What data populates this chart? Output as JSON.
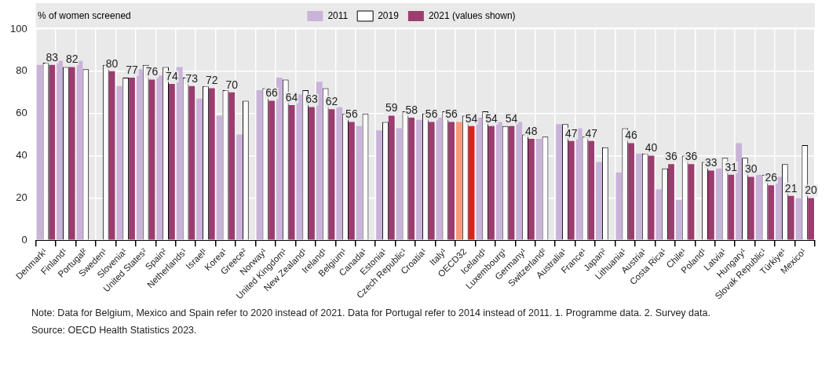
{
  "chart_data": {
    "type": "bar",
    "ylabel": "% of women screened",
    "categories": [
      "Denmark¹",
      "Finland¹",
      "Portugal²",
      "Sweden¹",
      "Slovenia¹",
      "United States²",
      "Spain²",
      "Netherlands¹",
      "Israel¹",
      "Korea¹",
      "Greece²",
      "Norway¹",
      "United Kingdom¹",
      "New Zealand¹",
      "Ireland¹",
      "Belgium¹",
      "Canada¹",
      "Estonia¹",
      "Czech Republic¹",
      "Croatia¹",
      "Italy¹",
      "OECD32",
      "Iceland¹",
      "Luxembourg¹",
      "Germany¹",
      "Switzerland²",
      "Australia¹",
      "France¹",
      "Japan²",
      "Lithuania¹",
      "Austria¹",
      "Costa Rica¹",
      "Chile¹",
      "Poland¹",
      "Latvia¹",
      "Hungary¹",
      "Slovak Republic¹",
      "Türkiye¹",
      "Mexico¹"
    ],
    "series": [
      {
        "name": "2011",
        "color": "#c9b3d9",
        "colors": [
          "#c9b3d9",
          "#c9b3d9",
          "#c9b3d9",
          "#c9b3d9",
          "#c9b3d9",
          "#c9b3d9",
          "#c9b3d9",
          "#c9b3d9",
          "#c9b3d9",
          "#c9b3d9",
          "#c9b3d9",
          "#c9b3d9",
          "#c9b3d9",
          "#c9b3d9",
          "#c9b3d9",
          "#c9b3d9",
          "#c9b3d9",
          "#c9b3d9",
          "#c9b3d9",
          "#c9b3d9",
          "#c9b3d9",
          "#f79a7a",
          "#c9b3d9",
          "#c9b3d9",
          "#c9b3d9",
          "#c9b3d9",
          "#c9b3d9",
          "#c9b3d9",
          "#c9b3d9",
          "#c9b3d9",
          "#c9b3d9",
          "#c9b3d9",
          "#c9b3d9",
          "#c9b3d9",
          "#c9b3d9",
          "#c9b3d9",
          "#c9b3d9",
          "#c9b3d9",
          "#c9b3d9"
        ],
        "values": [
          83,
          85,
          85,
          null,
          73,
          81,
          78,
          82,
          67,
          59,
          50,
          71,
          77,
          69,
          75,
          63,
          54,
          52,
          53,
          57,
          58,
          56,
          58,
          56,
          56,
          48,
          55,
          53,
          37,
          32,
          41,
          24,
          19,
          null,
          34,
          46,
          31,
          30,
          20
        ]
      },
      {
        "name": "2019",
        "color": "#ffffff",
        "values": [
          84,
          82,
          81,
          83,
          77,
          83,
          82,
          77,
          73,
          71,
          66,
          72,
          76,
          71,
          72,
          60,
          60,
          56,
          61,
          60,
          61,
          59,
          61,
          54,
          50,
          49,
          55,
          49,
          44,
          53,
          41,
          34,
          40,
          37,
          39,
          39,
          31,
          36,
          45
        ]
      },
      {
        "name": "2021 (values shown)",
        "color": "#9b3d6e",
        "colors": [
          "#9b3d6e",
          "#9b3d6e",
          "#9b3d6e",
          "#9b3d6e",
          "#9b3d6e",
          "#9b3d6e",
          "#9b3d6e",
          "#9b3d6e",
          "#9b3d6e",
          "#9b3d6e",
          "#9b3d6e",
          "#9b3d6e",
          "#9b3d6e",
          "#9b3d6e",
          "#9b3d6e",
          "#9b3d6e",
          "#9b3d6e",
          "#9b3d6e",
          "#9b3d6e",
          "#9b3d6e",
          "#9b3d6e",
          "#e0201f",
          "#9b3d6e",
          "#9b3d6e",
          "#9b3d6e",
          "#9b3d6e",
          "#9b3d6e",
          "#9b3d6e",
          "#9b3d6e",
          "#9b3d6e",
          "#9b3d6e",
          "#9b3d6e",
          "#9b3d6e",
          "#9b3d6e",
          "#9b3d6e",
          "#9b3d6e",
          "#9b3d6e",
          "#9b3d6e",
          "#9b3d6e"
        ],
        "values": [
          83,
          82,
          null,
          80,
          77,
          76,
          74,
          73,
          72,
          70,
          null,
          66,
          64,
          63,
          62,
          56,
          null,
          59,
          58,
          56,
          56,
          54,
          54,
          54,
          48,
          null,
          47,
          47,
          null,
          46,
          40,
          36,
          36,
          33,
          31,
          30,
          26,
          21,
          20
        ],
        "value_labels": [
          "83",
          "82",
          null,
          "80",
          "77",
          "76",
          "74",
          "73",
          "72",
          "70",
          null,
          "66",
          "64",
          "63",
          "62",
          "56",
          null,
          "59",
          "58",
          "56",
          "56",
          "54",
          "54",
          "54",
          "48",
          null,
          "47",
          "47",
          null,
          "46",
          "40",
          "36",
          "36",
          "33",
          "31",
          "30",
          "26",
          "21",
          "20"
        ]
      }
    ],
    "ylim": [
      0,
      100
    ],
    "yticks": [
      0,
      20,
      40,
      60,
      80,
      100
    ],
    "grid": true,
    "legend": "top",
    "annotations": [
      "Note: Data for Belgium, Mexico and Spain refer to 2020 instead of 2021. Data for Portugal refer to 2014 instead of 2011. 1. Programme data. 2. Survey data.",
      "Source: OECD Health Statistics 2023."
    ]
  }
}
